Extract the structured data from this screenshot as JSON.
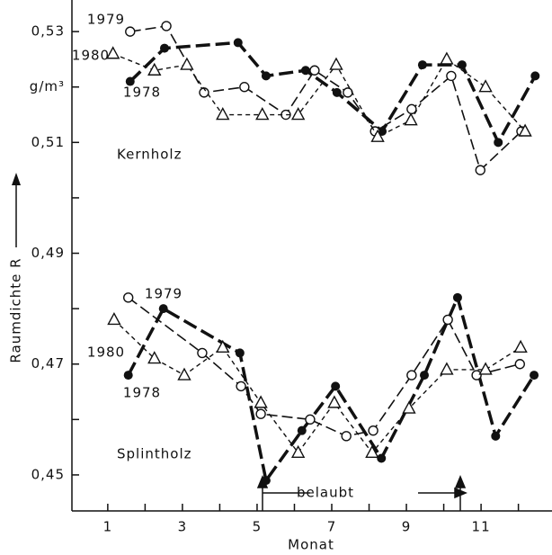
{
  "chart_data": {
    "type": "line",
    "xlabel": "Monat",
    "ylabel": "Raumdichte R",
    "xlim": [
      0.04,
      12.9
    ],
    "ylim": [
      0.4435,
      0.5357
    ],
    "xticks": [
      1,
      3,
      5,
      7,
      9,
      11
    ],
    "xminorticks": [
      2,
      4,
      6,
      8,
      10,
      12
    ],
    "yticks": [
      {
        "value": 0.45,
        "label": "0,45"
      },
      {
        "value": 0.47,
        "label": "0,47"
      },
      {
        "value": 0.49,
        "label": "0,49"
      },
      {
        "value": 0.51,
        "label": "0,51"
      },
      {
        "value": 0.52,
        "label": "g/m³"
      },
      {
        "value": 0.53,
        "label": "0,53"
      }
    ],
    "yminorticks": [
      0.46,
      0.48,
      0.5
    ],
    "annotation": "belaubt",
    "groups": [
      {
        "label": "Kernholz",
        "series": [
          {
            "name": "1978",
            "color": "#111111",
            "style": "thick-dash",
            "marker": "filled-circle",
            "x": [
              1.6,
              2.52,
              4.49,
              5.24,
              6.3,
              7.14,
              8.35,
              9.43,
              10.49,
              11.46,
              12.45
            ],
            "values": [
              0.521,
              0.527,
              0.528,
              0.522,
              0.523,
              0.519,
              0.512,
              0.524,
              0.524,
              0.51,
              0.522
            ]
          },
          {
            "name": "1979",
            "color": "#111111",
            "style": "long-dash",
            "marker": "open-circle",
            "x": [
              1.6,
              2.57,
              3.58,
              4.66,
              5.77,
              6.54,
              7.43,
              8.16,
              9.14,
              10.2,
              10.98,
              12.08
            ],
            "values": [
              0.53,
              0.531,
              0.519,
              0.52,
              0.515,
              0.523,
              0.519,
              0.512,
              0.516,
              0.522,
              0.505,
              0.512
            ]
          },
          {
            "name": "1980",
            "color": "#111111",
            "style": "short-dash",
            "marker": "triangle",
            "x": [
              1.14,
              2.25,
              3.12,
              4.08,
              5.14,
              6.1,
              7.12,
              8.23,
              9.12,
              10.08,
              11.12,
              12.18
            ],
            "values": [
              0.526,
              0.523,
              0.524,
              0.515,
              0.515,
              0.515,
              0.524,
              0.511,
              0.514,
              0.525,
              0.52,
              0.512
            ]
          }
        ]
      },
      {
        "label": "Splintholz",
        "series": [
          {
            "name": "1978",
            "color": "#111111",
            "style": "thick-dash",
            "marker": "filled-circle",
            "x": [
              1.55,
              2.49,
              4.54,
              5.24,
              6.2,
              7.1,
              8.33,
              9.48,
              10.37,
              11.39,
              12.42
            ],
            "values": [
              0.468,
              0.48,
              0.472,
              0.449,
              0.458,
              0.466,
              0.453,
              0.468,
              0.482,
              0.457,
              0.468
            ]
          },
          {
            "name": "1979",
            "color": "#111111",
            "style": "long-dash",
            "marker": "open-circle",
            "x": [
              1.55,
              3.53,
              4.57,
              5.1,
              6.42,
              7.39,
              8.11,
              9.14,
              10.11,
              10.88,
              12.04
            ],
            "values": [
              0.482,
              0.472,
              0.466,
              0.461,
              0.46,
              0.457,
              0.458,
              0.468,
              0.478,
              0.468,
              0.47
            ]
          },
          {
            "name": "1980",
            "color": "#111111",
            "style": "short-dash",
            "marker": "triangle",
            "x": [
              1.17,
              2.25,
              3.05,
              4.08,
              5.1,
              6.1,
              7.07,
              8.08,
              9.07,
              10.08,
              11.12,
              12.06
            ],
            "values": [
              0.478,
              0.471,
              0.468,
              0.473,
              0.463,
              0.454,
              0.463,
              0.454,
              0.462,
              0.469,
              0.469,
              0.473
            ]
          }
        ]
      }
    ]
  }
}
